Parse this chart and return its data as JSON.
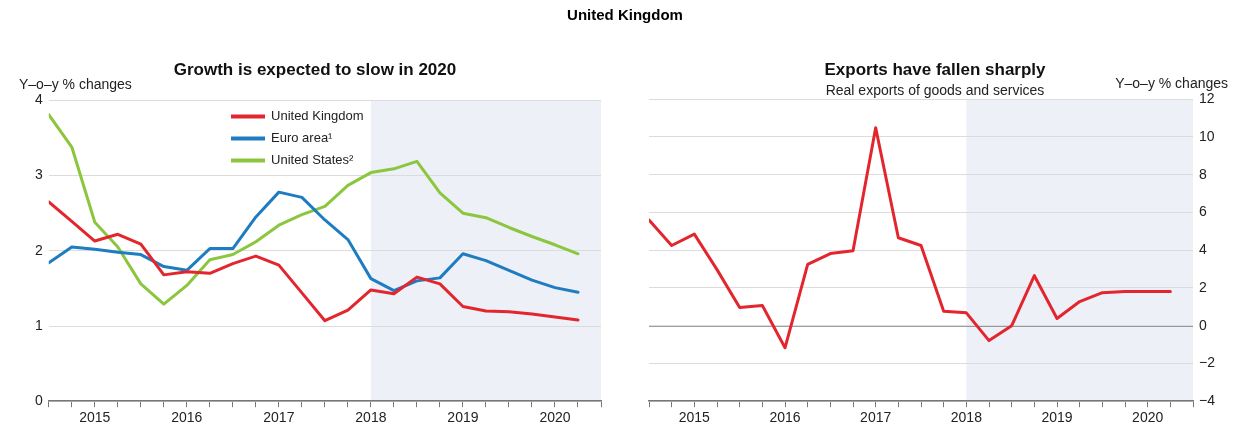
{
  "chart_data": [
    {
      "type": "line",
      "title": "Growth is expected to slow in 2020",
      "ylabel": "Y–o–y % changes",
      "annotations": [
        "United Kingdom"
      ],
      "x": [
        2015,
        2015.25,
        2015.5,
        2015.75,
        2016,
        2016.25,
        2016.5,
        2016.75,
        2017,
        2017.25,
        2017.5,
        2017.75,
        2018,
        2018.25,
        2018.5,
        2018.75,
        2019,
        2019.25,
        2019.5,
        2019.75,
        2020,
        2020.25,
        2020.5,
        2020.75
      ],
      "series": [
        {
          "name": "United Kingdom",
          "color": "#e3262e",
          "values": [
            2.65,
            2.39,
            2.13,
            2.22,
            2.09,
            1.68,
            1.72,
            1.7,
            1.83,
            1.93,
            1.81,
            1.44,
            1.07,
            1.21,
            1.48,
            1.43,
            1.65,
            1.56,
            1.26,
            1.2,
            1.19,
            1.16,
            1.12,
            1.08
          ]
        },
        {
          "name": "Euro area¹",
          "color": "#1f7cc1",
          "values": [
            1.84,
            2.05,
            2.02,
            1.98,
            1.95,
            1.79,
            1.74,
            2.03,
            2.03,
            2.45,
            2.78,
            2.71,
            2.41,
            2.15,
            1.63,
            1.47,
            1.6,
            1.64,
            1.96,
            1.87,
            1.74,
            1.61,
            1.51,
            1.45
          ]
        },
        {
          "name": "United States²",
          "color": "#8cc63e",
          "values": [
            3.81,
            3.38,
            2.38,
            2.05,
            1.56,
            1.29,
            1.54,
            1.88,
            1.95,
            2.12,
            2.34,
            2.48,
            2.59,
            2.87,
            3.04,
            3.09,
            3.19,
            2.77,
            2.5,
            2.44,
            2.31,
            2.19,
            2.08,
            1.96
          ]
        }
      ],
      "xlim": [
        2015,
        2021
      ],
      "xticks": [
        {
          "value": 2015,
          "label": null
        },
        {
          "value": 2015.25,
          "label": null
        },
        {
          "value": 2015.5,
          "label": "2015"
        },
        {
          "value": 2015.75,
          "label": null
        },
        {
          "value": 2016,
          "label": null
        },
        {
          "value": 2016.25,
          "label": null
        },
        {
          "value": 2016.5,
          "label": "2016"
        },
        {
          "value": 2016.75,
          "label": null
        },
        {
          "value": 2017,
          "label": null
        },
        {
          "value": 2017.25,
          "label": null
        },
        {
          "value": 2017.5,
          "label": "2017"
        },
        {
          "value": 2017.75,
          "label": null
        },
        {
          "value": 2018,
          "label": null
        },
        {
          "value": 2018.25,
          "label": null
        },
        {
          "value": 2018.5,
          "label": "2018"
        },
        {
          "value": 2018.75,
          "label": null
        },
        {
          "value": 2019,
          "label": null
        },
        {
          "value": 2019.25,
          "label": null
        },
        {
          "value": 2019.5,
          "label": "2019"
        },
        {
          "value": 2019.75,
          "label": null
        },
        {
          "value": 2020,
          "label": null
        },
        {
          "value": 2020.25,
          "label": null
        },
        {
          "value": 2020.5,
          "label": "2020"
        },
        {
          "value": 2020.75,
          "label": null
        },
        {
          "value": 2021,
          "label": null
        }
      ],
      "ylim": [
        0,
        4
      ],
      "yticks": [
        0,
        1,
        2,
        3,
        4
      ],
      "bands": [
        {
          "axis": "x",
          "from": 2018.5,
          "to": 2021,
          "color": "#edf0f7"
        }
      ],
      "grid": "y",
      "legend": "top",
      "marker": "none",
      "line_style": "solid"
    },
    {
      "type": "line",
      "title": "Exports have fallen sharply",
      "subtitle": "Real exports of goods and services",
      "y2label": "Y–o–y % changes",
      "x": [
        2015,
        2015.25,
        2015.5,
        2015.75,
        2016,
        2016.25,
        2016.5,
        2016.75,
        2017,
        2017.25,
        2017.5,
        2017.75,
        2018,
        2018.25,
        2018.5,
        2018.75,
        2019,
        2019.25,
        2019.5,
        2019.75,
        2020,
        2020.25,
        2020.5,
        2020.75
      ],
      "series": [
        {
          "color": "#e3262e",
          "axis": "y2",
          "values": [
            5.6,
            4.25,
            4.85,
            2.97,
            0.96,
            1.07,
            -1.17,
            3.25,
            3.82,
            3.97,
            10.49,
            4.66,
            4.25,
            0.77,
            0.68,
            -0.79,
            0.0,
            2.65,
            0.38,
            1.28,
            1.75,
            1.81,
            1.81,
            1.81
          ]
        }
      ],
      "xlim": [
        2015,
        2021
      ],
      "xticks": [
        {
          "value": 2015,
          "label": null
        },
        {
          "value": 2015.25,
          "label": null
        },
        {
          "value": 2015.5,
          "label": "2015"
        },
        {
          "value": 2015.75,
          "label": null
        },
        {
          "value": 2016,
          "label": null
        },
        {
          "value": 2016.25,
          "label": null
        },
        {
          "value": 2016.5,
          "label": "2016"
        },
        {
          "value": 2016.75,
          "label": null
        },
        {
          "value": 2017,
          "label": null
        },
        {
          "value": 2017.25,
          "label": null
        },
        {
          "value": 2017.5,
          "label": "2017"
        },
        {
          "value": 2017.75,
          "label": null
        },
        {
          "value": 2018,
          "label": null
        },
        {
          "value": 2018.25,
          "label": null
        },
        {
          "value": 2018.5,
          "label": "2018"
        },
        {
          "value": 2018.75,
          "label": null
        },
        {
          "value": 2019,
          "label": null
        },
        {
          "value": 2019.25,
          "label": null
        },
        {
          "value": 2019.5,
          "label": "2019"
        },
        {
          "value": 2019.75,
          "label": null
        },
        {
          "value": 2020,
          "label": null
        },
        {
          "value": 2020.25,
          "label": null
        },
        {
          "value": 2020.5,
          "label": "2020"
        },
        {
          "value": 2020.75,
          "label": null
        },
        {
          "value": 2021,
          "label": null
        }
      ],
      "y2lim": [
        -4,
        12
      ],
      "y2ticks": [
        -4,
        -2,
        0,
        2,
        4,
        6,
        8,
        10,
        12
      ],
      "ref_lines": [
        {
          "axis": "y2",
          "value": 0,
          "color": "#404040"
        }
      ],
      "bands": [
        {
          "axis": "x",
          "from": 2018.5,
          "to": 2021,
          "color": "#edf0f7"
        }
      ],
      "grid": "y",
      "legend": false,
      "marker": "none",
      "line_style": "solid"
    }
  ]
}
